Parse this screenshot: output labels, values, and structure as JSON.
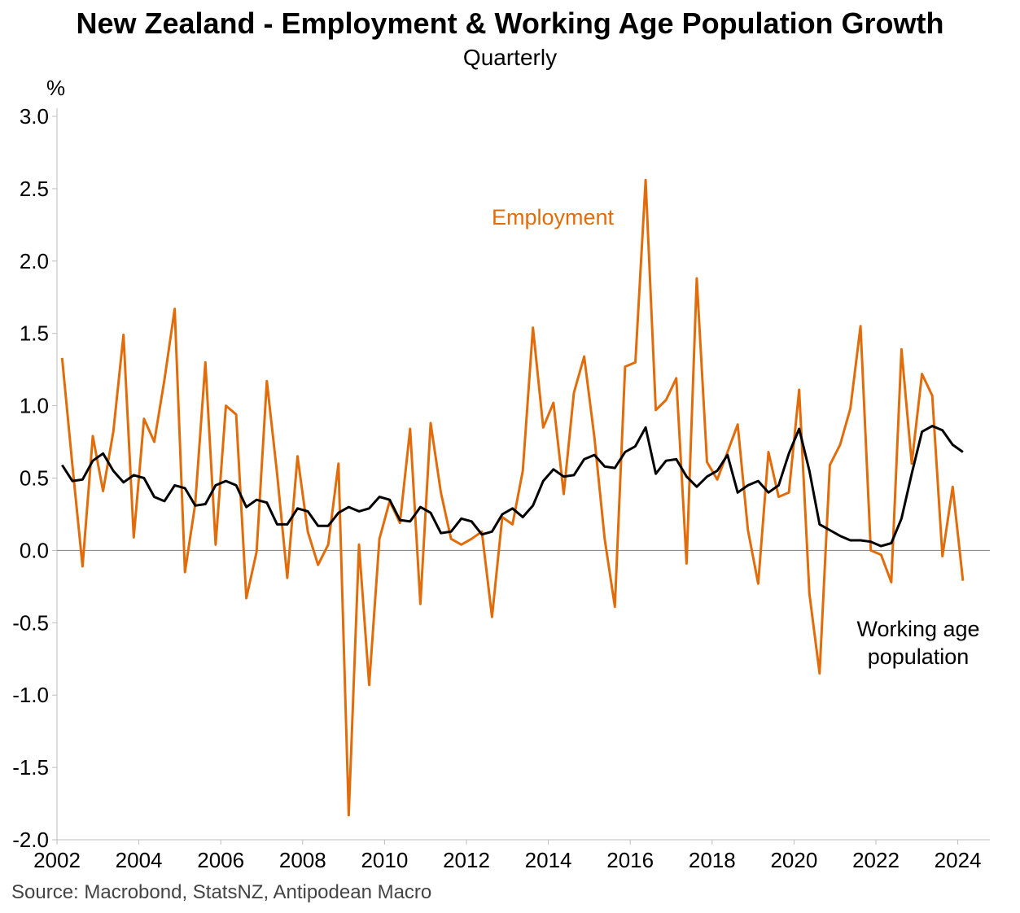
{
  "chart_data": {
    "type": "line",
    "title": "New Zealand - Employment & Working Age Population Growth",
    "subtitle": "Quarterly",
    "ylabel": "%",
    "xlabel": "",
    "ylim": [
      -2.0,
      3.0
    ],
    "xlim": [
      2002.0,
      2024.8
    ],
    "yticks": [
      "3.0",
      "2.5",
      "2.0",
      "1.5",
      "1.0",
      "0.5",
      "0.0",
      "-0.5",
      "-1.0",
      "-1.5",
      "-2.0"
    ],
    "xticks": [
      "2002",
      "2004",
      "2006",
      "2008",
      "2010",
      "2012",
      "2014",
      "2016",
      "2018",
      "2020",
      "2022",
      "2024"
    ],
    "x_start": 2002.125,
    "x_step": 0.25,
    "series": [
      {
        "name": "Employment",
        "label": "Employment",
        "color": "#E36C0A",
        "values": [
          1.33,
          0.59,
          -0.11,
          0.79,
          0.41,
          0.82,
          1.49,
          0.09,
          0.91,
          0.75,
          1.18,
          1.67,
          -0.15,
          0.32,
          1.3,
          0.04,
          1.0,
          0.94,
          -0.33,
          -0.01,
          1.17,
          0.53,
          -0.19,
          0.65,
          0.13,
          -0.1,
          0.04,
          0.6,
          -1.83,
          0.04,
          -0.93,
          0.08,
          0.34,
          0.19,
          0.84,
          -0.37,
          0.88,
          0.4,
          0.08,
          0.04,
          0.08,
          0.13,
          -0.46,
          0.23,
          0.18,
          0.55,
          1.54,
          0.85,
          1.02,
          0.39,
          1.09,
          1.34,
          0.78,
          0.08,
          -0.39,
          1.27,
          1.3,
          2.56,
          0.97,
          1.04,
          1.19,
          -0.09,
          1.88,
          0.61,
          0.49,
          0.68,
          0.87,
          0.14,
          -0.23,
          0.68,
          0.37,
          0.4,
          1.11,
          -0.3,
          -0.85,
          0.59,
          0.73,
          0.98,
          1.55,
          0.0,
          -0.03,
          -0.22,
          1.39,
          0.6,
          1.22,
          1.07,
          -0.04,
          0.44,
          -0.21
        ]
      },
      {
        "name": "Working age population",
        "label": "Working age population",
        "color": "#000000",
        "values": [
          0.59,
          0.48,
          0.49,
          0.62,
          0.67,
          0.55,
          0.47,
          0.52,
          0.5,
          0.37,
          0.34,
          0.45,
          0.43,
          0.31,
          0.32,
          0.45,
          0.48,
          0.45,
          0.3,
          0.35,
          0.33,
          0.18,
          0.18,
          0.29,
          0.27,
          0.17,
          0.17,
          0.26,
          0.3,
          0.27,
          0.29,
          0.37,
          0.35,
          0.21,
          0.2,
          0.3,
          0.26,
          0.12,
          0.13,
          0.22,
          0.2,
          0.11,
          0.13,
          0.25,
          0.29,
          0.23,
          0.31,
          0.48,
          0.56,
          0.51,
          0.52,
          0.63,
          0.66,
          0.58,
          0.57,
          0.68,
          0.72,
          0.85,
          0.53,
          0.62,
          0.63,
          0.51,
          0.44,
          0.51,
          0.55,
          0.66,
          0.4,
          0.45,
          0.48,
          0.4,
          0.45,
          0.67,
          0.84,
          0.55,
          0.18,
          0.14,
          0.1,
          0.07,
          0.07,
          0.06,
          0.03,
          0.05,
          0.22,
          0.53,
          0.82,
          0.86,
          0.83,
          0.73,
          0.68
        ]
      }
    ]
  },
  "source_text": "Source: Macrobond, StatsNZ, Antipodean Macro",
  "annotations": {
    "employment_label": "Employment",
    "wap_line1": "Working age",
    "wap_line2": "population"
  }
}
